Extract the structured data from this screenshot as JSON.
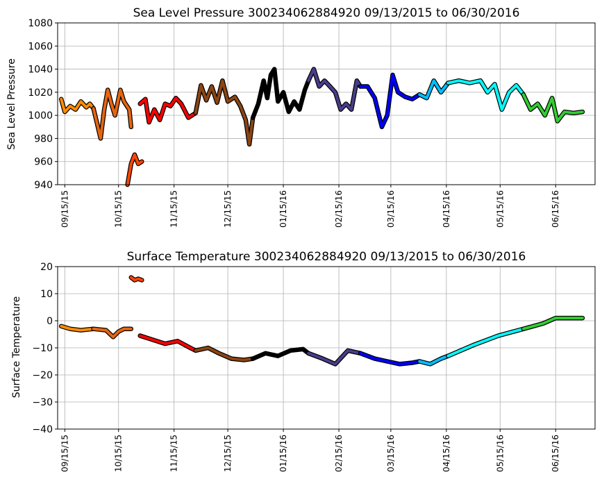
{
  "chart_data": [
    {
      "type": "line",
      "title": "Sea Level Pressure 300234062884920  09/13/2015 to 06/30/2016",
      "xlabel": "",
      "ylabel": "Sea Level Pressure",
      "xlim": [
        "09/11/2015",
        "07/07/2016"
      ],
      "ylim": [
        940,
        1080
      ],
      "yticks": [
        940,
        960,
        980,
        1000,
        1020,
        1040,
        1060,
        1080
      ],
      "xtick_labels": [
        "09/15/15",
        "10/15/15",
        "11/15/15",
        "12/15/15",
        "01/15/16",
        "02/15/16",
        "03/15/16",
        "04/15/16",
        "05/15/16",
        "06/15/16"
      ],
      "grid": true,
      "series": [
        {
          "color": "#ff8c00",
          "points": [
            [
              "09/13/2015",
              1014
            ],
            [
              "09/15/2015",
              1003
            ],
            [
              "09/18/2015",
              1008
            ],
            [
              "09/21/2015",
              1005
            ],
            [
              "09/24/2015",
              1012
            ],
            [
              "09/27/2015",
              1007
            ],
            [
              "09/29/2015",
              1010
            ],
            [
              "10/01/2015",
              1006
            ]
          ]
        },
        {
          "color": "#e8650f",
          "points": [
            [
              "10/01/2015",
              1006
            ],
            [
              "10/03/2015",
              993
            ],
            [
              "10/05/2015",
              980
            ],
            [
              "10/07/2015",
              1005
            ],
            [
              "10/09/2015",
              1022
            ],
            [
              "10/11/2015",
              1010
            ],
            [
              "10/13/2015",
              1000
            ],
            [
              "10/16/2015",
              1022
            ],
            [
              "10/18/2015",
              1012
            ],
            [
              "10/21/2015",
              1005
            ],
            [
              "10/22/2015",
              990
            ]
          ]
        },
        {
          "color": "#ff4500",
          "points": [
            [
              "10/20/2015",
              940
            ],
            [
              "10/22/2015",
              958
            ],
            [
              "10/24/2015",
              966
            ],
            [
              "10/26/2015",
              958
            ],
            [
              "10/28/2015",
              960
            ]
          ]
        },
        {
          "color": "#ff0000",
          "points": [
            [
              "10/27/2015",
              1010
            ],
            [
              "10/30/2015",
              1014
            ],
            [
              "11/01/2015",
              994
            ],
            [
              "11/04/2015",
              1005
            ],
            [
              "11/07/2015",
              996
            ],
            [
              "11/10/2015",
              1010
            ],
            [
              "11/13/2015",
              1008
            ],
            [
              "11/16/2015",
              1015
            ],
            [
              "11/19/2015",
              1010
            ],
            [
              "11/23/2015",
              998
            ],
            [
              "11/27/2015",
              1002
            ]
          ]
        },
        {
          "color": "#8b4513",
          "points": [
            [
              "11/27/2015",
              1002
            ],
            [
              "11/30/2015",
              1026
            ],
            [
              "12/03/2015",
              1013
            ],
            [
              "12/06/2015",
              1025
            ],
            [
              "12/09/2015",
              1011
            ],
            [
              "12/12/2015",
              1030
            ],
            [
              "12/15/2015",
              1012
            ],
            [
              "12/19/2015",
              1016
            ],
            [
              "12/22/2015",
              1008
            ],
            [
              "12/25/2015",
              996
            ],
            [
              "12/27/2015",
              975
            ],
            [
              "12/29/2015",
              998
            ]
          ]
        },
        {
          "color": "#000000",
          "points": [
            [
              "12/29/2015",
              998
            ],
            [
              "01/01/2016",
              1010
            ],
            [
              "01/04/2016",
              1030
            ],
            [
              "01/06/2016",
              1015
            ],
            [
              "01/08/2016",
              1035
            ],
            [
              "01/10/2016",
              1040
            ],
            [
              "01/12/2016",
              1012
            ],
            [
              "01/15/2016",
              1020
            ],
            [
              "01/18/2016",
              1003
            ],
            [
              "01/21/2016",
              1012
            ],
            [
              "01/24/2016",
              1005
            ],
            [
              "01/27/2016",
              1022
            ],
            [
              "01/29/2016",
              1030
            ]
          ]
        },
        {
          "color": "#483d8b",
          "points": [
            [
              "01/29/2016",
              1030
            ],
            [
              "02/01/2016",
              1040
            ],
            [
              "02/04/2016",
              1025
            ],
            [
              "02/07/2016",
              1030
            ],
            [
              "02/10/2016",
              1025
            ],
            [
              "02/13/2016",
              1020
            ],
            [
              "02/16/2016",
              1005
            ],
            [
              "02/19/2016",
              1010
            ],
            [
              "02/22/2016",
              1005
            ],
            [
              "02/25/2016",
              1030
            ],
            [
              "02/27/2016",
              1025
            ]
          ]
        },
        {
          "color": "#0000ff",
          "points": [
            [
              "02/27/2016",
              1025
            ],
            [
              "03/02/2016",
              1025
            ],
            [
              "03/06/2016",
              1015
            ],
            [
              "03/10/2016",
              990
            ],
            [
              "03/13/2016",
              1000
            ],
            [
              "03/16/2016",
              1035
            ],
            [
              "03/19/2016",
              1020
            ],
            [
              "03/23/2016",
              1016
            ],
            [
              "03/27/2016",
              1014
            ],
            [
              "03/31/2016",
              1018
            ]
          ]
        },
        {
          "color": "#00bfff",
          "points": [
            [
              "03/31/2016",
              1018
            ],
            [
              "04/04/2016",
              1015
            ],
            [
              "04/08/2016",
              1030
            ],
            [
              "04/12/2016",
              1020
            ],
            [
              "04/16/2016",
              1028
            ]
          ]
        },
        {
          "color": "#00ffff",
          "points": [
            [
              "04/16/2016",
              1028
            ],
            [
              "04/22/2016",
              1030
            ],
            [
              "04/28/2016",
              1028
            ],
            [
              "05/04/2016",
              1030
            ],
            [
              "05/08/2016",
              1020
            ],
            [
              "05/12/2016",
              1027
            ],
            [
              "05/16/2016",
              1005
            ],
            [
              "05/20/2016",
              1020
            ],
            [
              "05/24/2016",
              1026
            ],
            [
              "05/28/2016",
              1018
            ]
          ]
        },
        {
          "color": "#32cd32",
          "points": [
            [
              "05/28/2016",
              1018
            ],
            [
              "06/01/2016",
              1005
            ],
            [
              "06/05/2016",
              1010
            ],
            [
              "06/09/2016",
              1000
            ],
            [
              "06/13/2016",
              1015
            ],
            [
              "06/16/2016",
              995
            ],
            [
              "06/20/2016",
              1003
            ],
            [
              "06/25/2016",
              1002
            ],
            [
              "06/30/2016",
              1003
            ]
          ]
        }
      ]
    },
    {
      "type": "line",
      "title": "Surface Temperature 300234062884920  09/13/2015 to 06/30/2016",
      "xlabel": "",
      "ylabel": "Surface Temperature",
      "xlim": [
        "09/11/2015",
        "07/07/2016"
      ],
      "ylim": [
        -40,
        20
      ],
      "yticks": [
        -40,
        -30,
        -20,
        -10,
        0,
        10,
        20
      ],
      "xtick_labels": [
        "09/15/15",
        "10/15/15",
        "11/15/15",
        "12/15/15",
        "01/15/16",
        "02/15/16",
        "03/15/16",
        "04/15/16",
        "05/15/16",
        "06/15/16"
      ],
      "grid": true,
      "series": [
        {
          "color": "#ff8c00",
          "points": [
            [
              "09/13/2015",
              -2
            ],
            [
              "09/18/2015",
              -3
            ],
            [
              "09/24/2015",
              -3.5
            ],
            [
              "10/01/2015",
              -3
            ]
          ]
        },
        {
          "color": "#e8650f",
          "points": [
            [
              "10/01/2015",
              -3
            ],
            [
              "10/08/2015",
              -3.5
            ],
            [
              "10/12/2015",
              -6
            ],
            [
              "10/15/2015",
              -4
            ],
            [
              "10/18/2015",
              -3
            ],
            [
              "10/22/2015",
              -3
            ]
          ]
        },
        {
          "color": "#ff4500",
          "points": [
            [
              "10/22/2015",
              16
            ],
            [
              "10/24/2015",
              15
            ],
            [
              "10/26/2015",
              15.5
            ],
            [
              "10/28/2015",
              15
            ]
          ]
        },
        {
          "color": "#ff0000",
          "points": [
            [
              "10/27/2015",
              -5.5
            ],
            [
              "11/03/2015",
              -7
            ],
            [
              "11/10/2015",
              -8.5
            ],
            [
              "11/17/2015",
              -7.5
            ],
            [
              "11/24/2015",
              -10
            ],
            [
              "11/27/2015",
              -11
            ]
          ]
        },
        {
          "color": "#8b4513",
          "points": [
            [
              "11/27/2015",
              -11
            ],
            [
              "12/04/2015",
              -10
            ],
            [
              "12/10/2015",
              -12
            ],
            [
              "12/17/2015",
              -14
            ],
            [
              "12/24/2015",
              -14.5
            ],
            [
              "12/29/2015",
              -14
            ]
          ]
        },
        {
          "color": "#000000",
          "points": [
            [
              "12/29/2015",
              -14
            ],
            [
              "01/05/2016",
              -12
            ],
            [
              "01/12/2016",
              -13
            ],
            [
              "01/19/2016",
              -11
            ],
            [
              "01/26/2016",
              -10.5
            ],
            [
              "01/29/2016",
              -12
            ]
          ]
        },
        {
          "color": "#483d8b",
          "points": [
            [
              "01/29/2016",
              -12
            ],
            [
              "02/06/2016",
              -14
            ],
            [
              "02/13/2016",
              -16
            ],
            [
              "02/20/2016",
              -11
            ],
            [
              "02/27/2016",
              -12
            ]
          ]
        },
        {
          "color": "#0000ff",
          "points": [
            [
              "02/27/2016",
              -12
            ],
            [
              "03/06/2016",
              -14
            ],
            [
              "03/13/2016",
              -15
            ],
            [
              "03/20/2016",
              -16
            ],
            [
              "03/27/2016",
              -15.5
            ],
            [
              "03/31/2016",
              -15
            ]
          ]
        },
        {
          "color": "#00bfff",
          "points": [
            [
              "03/31/2016",
              -15
            ],
            [
              "04/06/2016",
              -16
            ],
            [
              "04/12/2016",
              -14
            ],
            [
              "04/16/2016",
              -13
            ]
          ]
        },
        {
          "color": "#00ffff",
          "points": [
            [
              "04/16/2016",
              -13
            ],
            [
              "04/30/2016",
              -9
            ],
            [
              "05/14/2016",
              -5.5
            ],
            [
              "05/28/2016",
              -3
            ]
          ]
        },
        {
          "color": "#32cd32",
          "points": [
            [
              "05/28/2016",
              -3
            ],
            [
              "06/08/2016",
              -1
            ],
            [
              "06/15/2016",
              1
            ],
            [
              "06/22/2016",
              1
            ],
            [
              "06/30/2016",
              1
            ]
          ]
        }
      ]
    }
  ]
}
